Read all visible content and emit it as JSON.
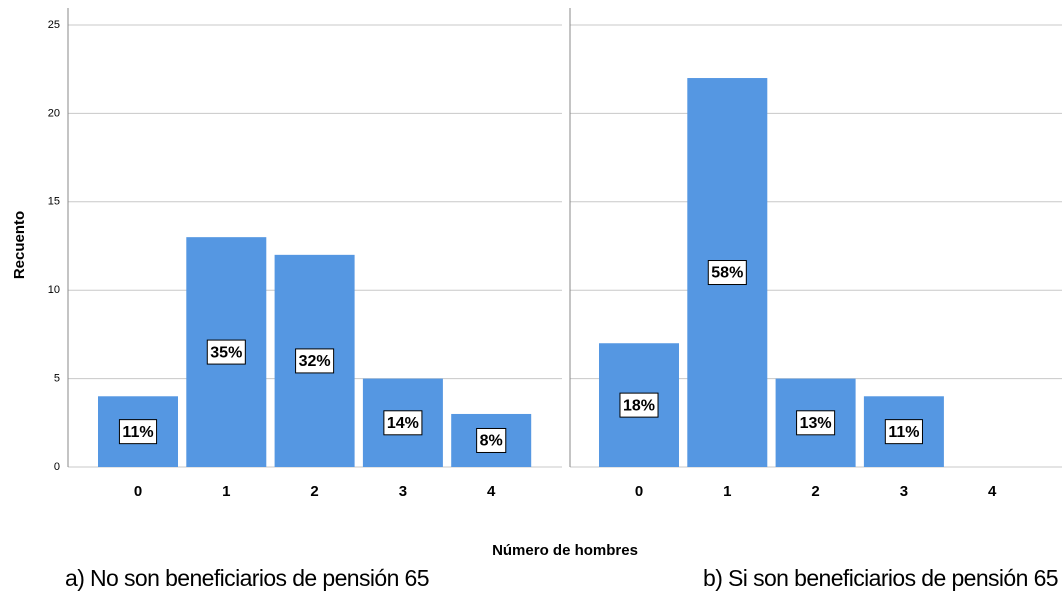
{
  "chart_data": [
    {
      "type": "bar",
      "caption": "a) No son beneficiarios de pensión 65",
      "categories": [
        "0",
        "1",
        "2",
        "3",
        "4"
      ],
      "values": [
        4,
        13,
        12,
        5,
        3
      ],
      "percent_labels": [
        "11%",
        "35%",
        "32%",
        "14%",
        "8%"
      ],
      "color": "#5597e2",
      "ylim": [
        0,
        25
      ],
      "yticks": [
        0,
        5,
        10,
        15,
        20,
        25
      ],
      "grid": true
    },
    {
      "type": "bar",
      "caption": "b) Si son beneficiarios de pensión 65",
      "categories": [
        "0",
        "1",
        "2",
        "3",
        "4"
      ],
      "values": [
        7,
        22,
        5,
        4,
        0
      ],
      "percent_labels": [
        "18%",
        "58%",
        "13%",
        "11%",
        null
      ],
      "color": "#5597e2",
      "ylim": [
        0,
        25
      ],
      "sharey": true,
      "grid": true
    }
  ],
  "xlabel": "Número de hombres",
  "ylabel": "Recuento"
}
